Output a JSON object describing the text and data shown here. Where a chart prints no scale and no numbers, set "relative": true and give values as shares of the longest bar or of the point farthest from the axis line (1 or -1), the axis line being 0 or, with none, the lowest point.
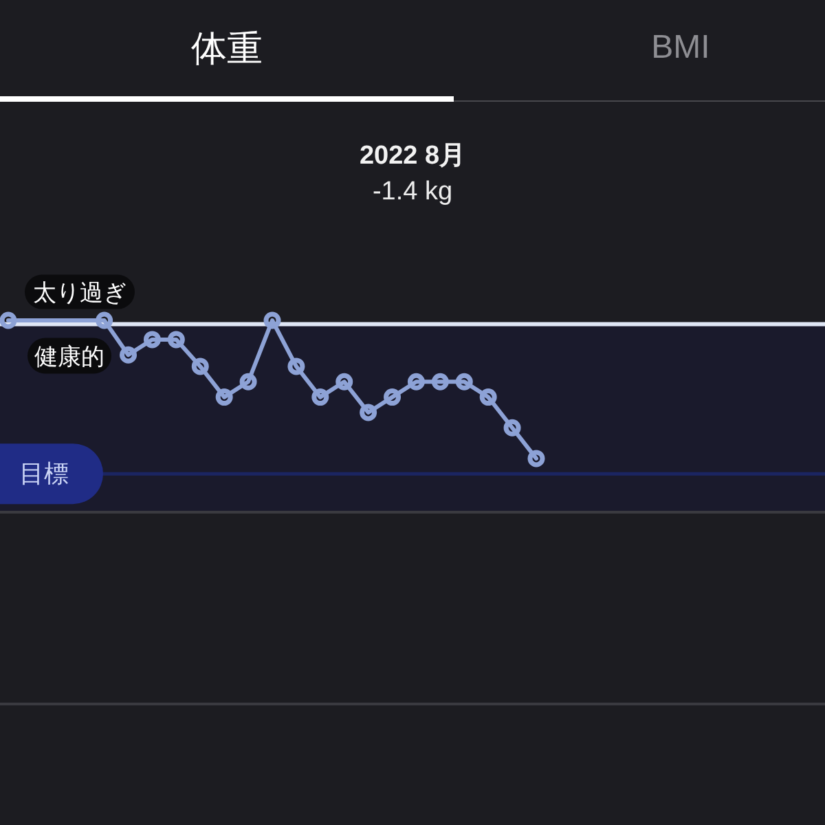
{
  "chart_data": {
    "type": "line",
    "title": "2022 8月",
    "subtitle": "-1.4 kg",
    "annotations": [
      "体重",
      "BMI"
    ],
    "categories": [
      null,
      null,
      null,
      null,
      null,
      null,
      null,
      null,
      null,
      null,
      null,
      null,
      null,
      null,
      null,
      null,
      null,
      null,
      null,
      null,
      null,
      null,
      null
    ],
    "values": [
      1.0,
      null,
      null,
      null,
      1.0,
      0.91,
      0.95,
      0.95,
      0.88,
      0.8,
      0.84,
      1.0,
      0.88,
      0.8,
      0.84,
      0.76,
      0.8,
      0.84,
      0.84,
      0.84,
      0.8,
      0.72,
      0.64
    ],
    "color": "#8da2d6",
    "relative": true,
    "marker": "circle",
    "line_style": "solid",
    "ref_lines": [
      {
        "axis": "y",
        "value": 0.99,
        "label": "太り過ぎ",
        "color": "#dfe6f5"
      },
      {
        "axis": "y",
        "value": 0.6,
        "label": "目標",
        "color": "#1b2562"
      }
    ],
    "bands": [
      {
        "axis": "y",
        "from": 0.5,
        "to": 0.99,
        "label": "健康的",
        "color": "#1a1a2c"
      }
    ]
  }
}
